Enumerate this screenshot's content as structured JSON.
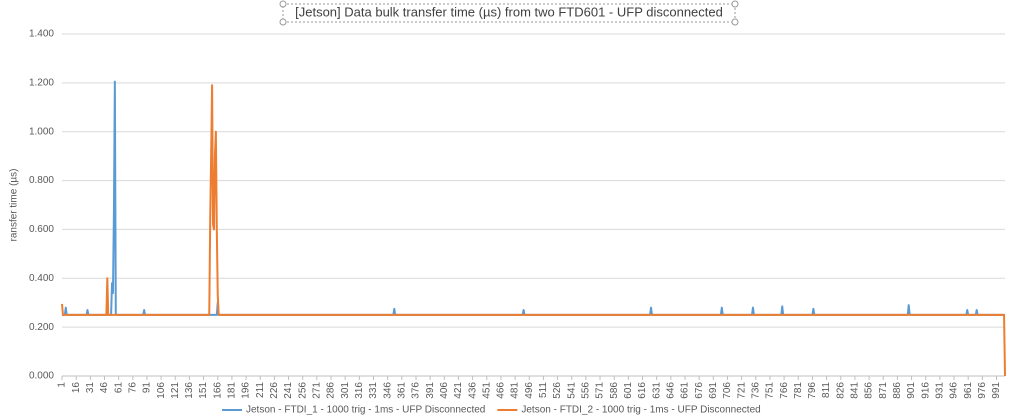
{
  "chart_data": {
    "type": "line",
    "title": "[Jetson] Data bulk transfer time (µs) from two FTD601 - UFP disconnected",
    "y_label": "ransfer time (µs)",
    "x": [
      1,
      2,
      4,
      5,
      6,
      27,
      28,
      29,
      48,
      49,
      50,
      53,
      54,
      55,
      56,
      57,
      58,
      59,
      87,
      88,
      89,
      156,
      157,
      158,
      159,
      160,
      161,
      162,
      163,
      164,
      165,
      166,
      167,
      168,
      352,
      353,
      354,
      489,
      490,
      491,
      624,
      625,
      626,
      699,
      700,
      701,
      732,
      733,
      734,
      763,
      764,
      765,
      796,
      797,
      798,
      897,
      898,
      899,
      959,
      960,
      961,
      969,
      970,
      971,
      999,
      1000
    ],
    "series": [
      {
        "name": "Jetson - FTDI_1 - 1000 trig - 1ms - UFP Disconnected",
        "color": "#5b9bd5",
        "values": [
          0.25,
          0.25,
          0.25,
          0.28,
          0.25,
          0.25,
          0.27,
          0.25,
          0.25,
          0.25,
          0.25,
          0.25,
          0.38,
          0.34,
          0.67,
          1.205,
          0.25,
          0.25,
          0.25,
          0.27,
          0.25,
          0.25,
          0.25,
          0.25,
          0.25,
          0.25,
          0.25,
          0.25,
          0.25,
          0.25,
          0.25,
          0.3,
          0.25,
          0.25,
          0.25,
          0.275,
          0.25,
          0.25,
          0.27,
          0.25,
          0.25,
          0.28,
          0.25,
          0.25,
          0.28,
          0.25,
          0.25,
          0.28,
          0.25,
          0.25,
          0.285,
          0.25,
          0.25,
          0.275,
          0.25,
          0.25,
          0.29,
          0.25,
          0.25,
          0.27,
          0.25,
          0.25,
          0.27,
          0.25,
          0.25,
          0.25
        ]
      },
      {
        "name": "Jetson - FTDI_2 - 1000 trig - 1ms - UFP Disconnected",
        "color": "#ed7d31",
        "values": [
          0.295,
          0.25,
          0.25,
          0.25,
          0.25,
          0.25,
          0.25,
          0.25,
          0.25,
          0.4,
          0.25,
          0.25,
          0.25,
          0.25,
          0.25,
          0.25,
          0.25,
          0.25,
          0.25,
          0.25,
          0.25,
          0.25,
          0.25,
          0.64,
          0.9,
          1.19,
          0.62,
          0.6,
          0.9,
          1.0,
          0.6,
          0.33,
          0.25,
          0.25,
          0.25,
          0.25,
          0.25,
          0.25,
          0.25,
          0.25,
          0.25,
          0.25,
          0.25,
          0.25,
          0.25,
          0.25,
          0.25,
          0.25,
          0.25,
          0.25,
          0.25,
          0.25,
          0.25,
          0.25,
          0.25,
          0.25,
          0.25,
          0.25,
          0.25,
          0.25,
          0.25,
          0.25,
          0.25,
          0.25,
          0.25,
          0
        ]
      }
    ],
    "xlim": [
      1,
      1000
    ],
    "xticks": [
      1,
      16,
      31,
      46,
      61,
      76,
      91,
      106,
      121,
      136,
      151,
      166,
      181,
      196,
      211,
      226,
      241,
      256,
      271,
      286,
      301,
      316,
      331,
      346,
      361,
      376,
      391,
      406,
      421,
      436,
      451,
      466,
      481,
      496,
      511,
      526,
      541,
      556,
      571,
      586,
      601,
      616,
      631,
      646,
      661,
      676,
      691,
      706,
      721,
      736,
      751,
      766,
      781,
      796,
      811,
      826,
      841,
      856,
      871,
      886,
      901,
      916,
      931,
      946,
      961,
      976,
      991
    ],
    "ylim": [
      0,
      1.4
    ],
    "yticks": [
      {
        "value": 0,
        "label": "0.000"
      },
      {
        "value": 0.2,
        "label": "0.200"
      },
      {
        "value": 0.4,
        "label": "0.400"
      },
      {
        "value": 0.6,
        "label": "0.600"
      },
      {
        "value": 0.8,
        "label": "0.800"
      },
      {
        "value": 1.0,
        "label": "1.000"
      },
      {
        "value": 1.2,
        "label": "1.200"
      },
      {
        "value": 1.4,
        "label": "1.400"
      }
    ],
    "grid": true,
    "legend": "bottom"
  }
}
